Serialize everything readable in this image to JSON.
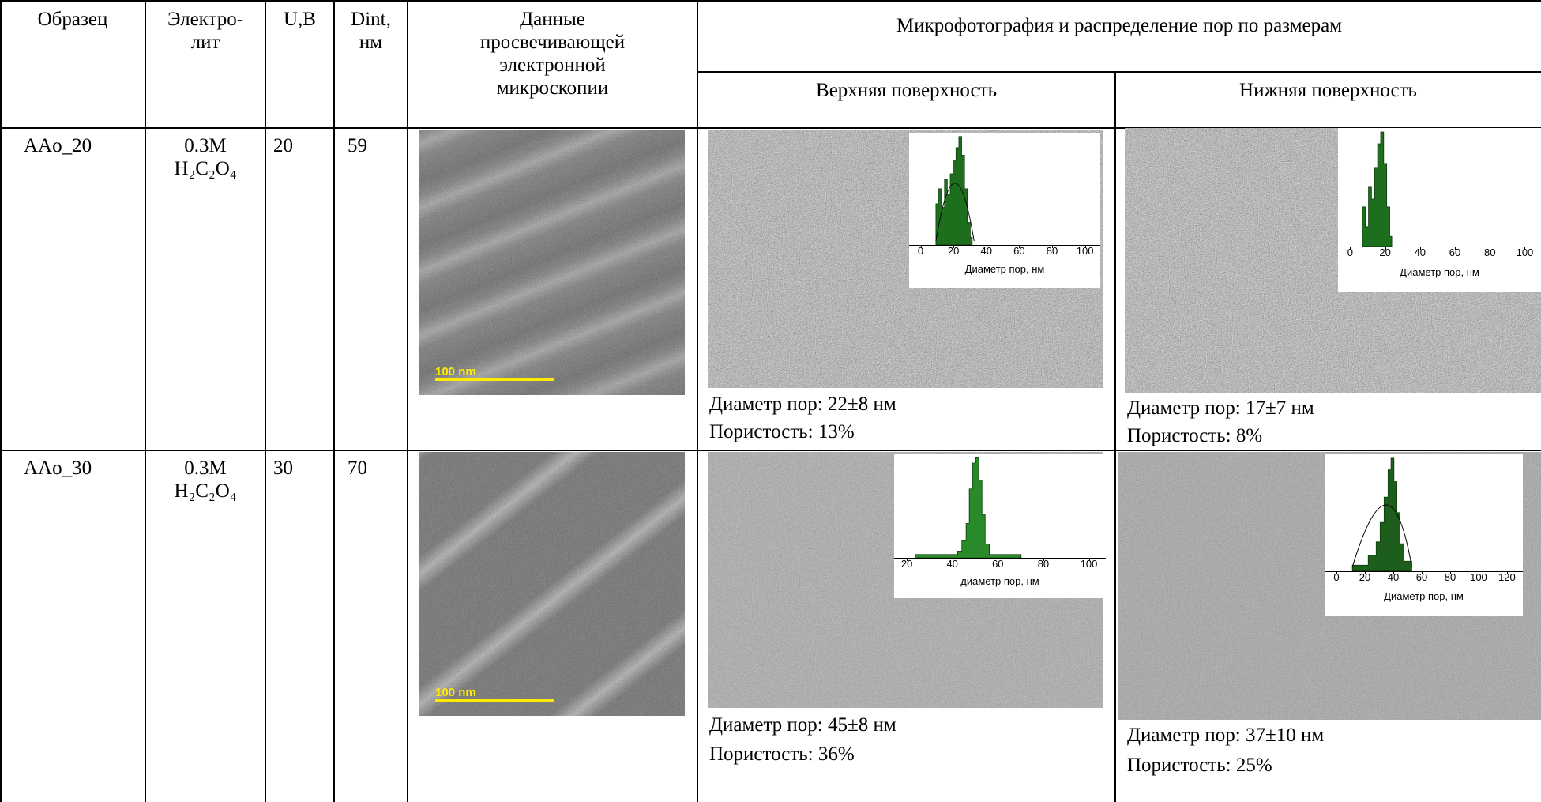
{
  "table": {
    "headers": [
      "Образец",
      "Электро-\nлит",
      "U,В",
      "Dint,\nнм",
      "Данные\nпросвечивающей\nэлектронной\nмикроскопии",
      "Микрофотография и распределение пор по размерам"
    ],
    "subheaders": [
      "Верхняя поверхность",
      "Нижняя поверхность"
    ],
    "rows": [
      {
        "sample": "AAo_20",
        "electrolyte": "0.3M\nH₂C₂O₄",
        "voltage": 20,
        "dint": 59,
        "tem_scale": "100 nm",
        "top": {
          "inset_xticks": [
            0,
            20,
            40,
            60,
            80,
            100
          ],
          "inset_xlabel": "Диаметр пор, нм",
          "diameter": "Диаметр пор: 22±8 нм",
          "porosity": "Пористость: 13%"
        },
        "bottom": {
          "inset_xticks": [
            0,
            20,
            40,
            60,
            80,
            100
          ],
          "inset_xlabel": "Диаметр пор, нм",
          "diameter": "Диаметр пор: 17±7 нм",
          "porosity": "Пористость: 8%"
        }
      },
      {
        "sample": "AAo_30",
        "electrolyte": "0.3M\nH₂C₂O₄",
        "voltage": 30,
        "dint": 70,
        "tem_scale": "100 nm",
        "top": {
          "inset_xticks": [
            20,
            40,
            60,
            80,
            100
          ],
          "inset_xlabel": "диаметр пор, нм",
          "diameter": "Диаметр пор: 45±8 нм",
          "porosity": "Пористость: 36%"
        },
        "bottom": {
          "inset_xticks": [
            0,
            20,
            40,
            60,
            80,
            100,
            120
          ],
          "inset_xlabel": "Диаметр пор, нм",
          "diameter": "Диаметр пор: 37±10 нм",
          "porosity": "Пористость: 25%"
        }
      }
    ]
  }
}
